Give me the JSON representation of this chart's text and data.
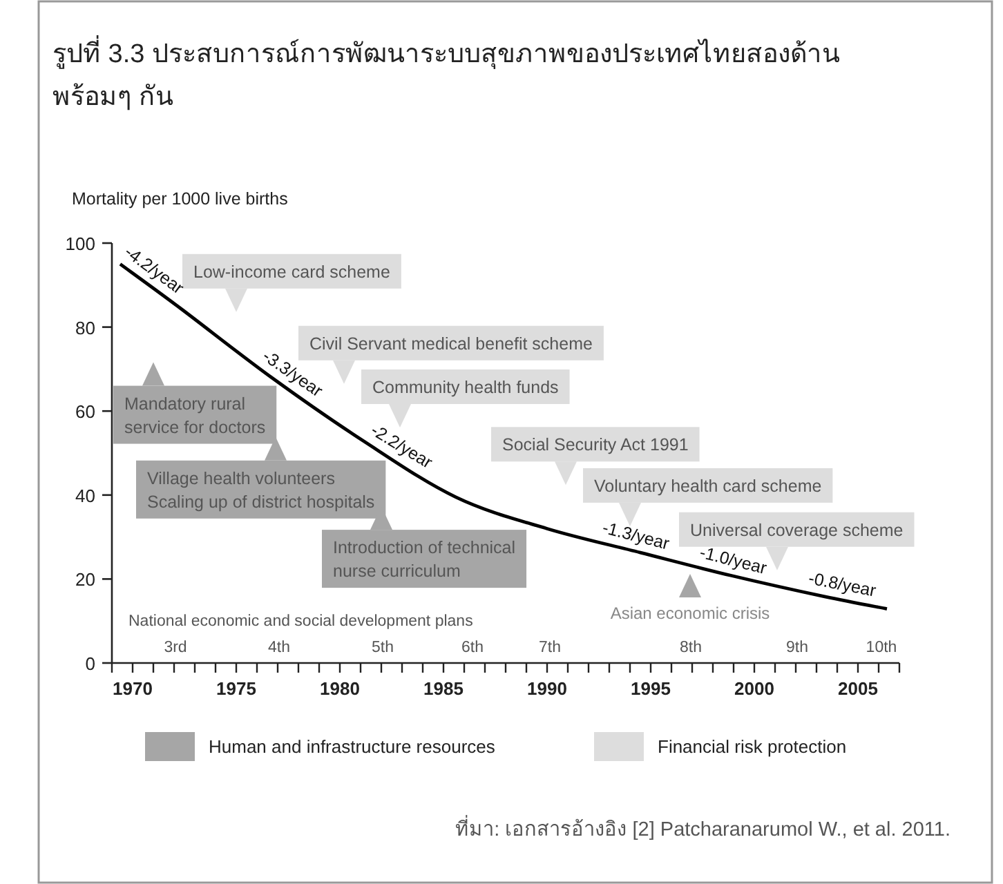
{
  "chart_data": {
    "type": "line",
    "title": "รูปที่ 3.3 ประสบการณ์การพัฒนาระบบสุขภาพของประเทศไทยสองด้าน\nพร้อมๆ กัน",
    "ylabel": "Mortality per 1000 live births",
    "xlim": [
      1969,
      2007
    ],
    "ylim": [
      0,
      100
    ],
    "xticks": [
      {
        "value": 1969,
        "label": null
      },
      1970,
      {
        "value": 1971,
        "label": null
      },
      {
        "value": 1972,
        "label": null
      },
      {
        "value": 1973,
        "label": null
      },
      {
        "value": 1974,
        "label": null
      },
      1975,
      {
        "value": 1976,
        "label": null
      },
      {
        "value": 1977,
        "label": null
      },
      {
        "value": 1978,
        "label": null
      },
      {
        "value": 1979,
        "label": null
      },
      1980,
      {
        "value": 1981,
        "label": null
      },
      {
        "value": 1982,
        "label": null
      },
      {
        "value": 1983,
        "label": null
      },
      {
        "value": 1984,
        "label": null
      },
      1985,
      {
        "value": 1986,
        "label": null
      },
      {
        "value": 1987,
        "label": null
      },
      {
        "value": 1988,
        "label": null
      },
      {
        "value": 1989,
        "label": null
      },
      1990,
      {
        "value": 1991,
        "label": null
      },
      {
        "value": 1992,
        "label": null
      },
      {
        "value": 1993,
        "label": null
      },
      {
        "value": 1994,
        "label": null
      },
      1995,
      {
        "value": 1996,
        "label": null
      },
      {
        "value": 1997,
        "label": null
      },
      {
        "value": 1998,
        "label": null
      },
      {
        "value": 1999,
        "label": null
      },
      2000,
      {
        "value": 2001,
        "label": null
      },
      {
        "value": 2002,
        "label": null
      },
      {
        "value": 2003,
        "label": null
      },
      {
        "value": 2004,
        "label": null
      },
      2005,
      {
        "value": 2006,
        "label": null
      },
      {
        "value": 2007,
        "label": null
      }
    ],
    "yticks": [
      0,
      20,
      40,
      60,
      80,
      100
    ],
    "series": [
      {
        "color": "#000000",
        "x": [
          1969.4,
          1972.3,
          1976.7,
          1981.1,
          1985.6,
          1990.0,
          1994.5,
          1998.9,
          2003.4,
          2006.4
        ],
        "values": [
          95,
          84.5,
          68,
          53,
          39.5,
          32,
          26.3,
          20.8,
          15.8,
          12.9
        ]
      },
      {
        "type": "scatter",
        "name": "Human and infrastructure resources",
        "color": "#a6a6a6",
        "marker": "triangle",
        "x": [
          1971.0,
          1976.9,
          1982.0,
          1996.9
        ],
        "values": [
          67.9,
          50.1,
          33.6,
          17.5
        ]
      },
      {
        "type": "scatter",
        "name": "Financial risk protection",
        "color": "#dddddd",
        "marker": "triangle",
        "x": [
          1975.0,
          1980.2,
          1982.9,
          1990.9,
          1994.0,
          2001.1
        ],
        "values": [
          87.3,
          70.2,
          59.8,
          46.1,
          36.3,
          25.8
        ]
      }
    ],
    "annotations": [
      {
        "text": "Low-income card scheme",
        "x": 1975.0,
        "y": 87.3
      },
      {
        "text": "Civil Servant medical benefit scheme",
        "x": 1980.2,
        "y": 70.2
      },
      {
        "text": "Community health funds",
        "x": 1982.9,
        "y": 59.8
      },
      {
        "text": "Social Security Act 1991",
        "x": 1990.9,
        "y": 46.1
      },
      {
        "text": "Voluntary health card scheme",
        "x": 1994.0,
        "y": 36.3
      },
      {
        "text": "Universal coverage scheme",
        "x": 2001.1,
        "y": 25.8
      },
      {
        "text": "Mandatory rural\nservice for doctors",
        "x": 1971.0,
        "y": 67.9
      },
      {
        "text": "Village health volunteers\nScaling up of district hospitals",
        "x": 1976.9,
        "y": 50.1
      },
      {
        "text": "Introduction of technical\nnurse curriculum",
        "x": 1982.0,
        "y": 33.6
      },
      {
        "text": "Asian economic crisis",
        "x": 1996.9,
        "y": 17.5
      },
      "-4.2/year",
      "-3.3/year",
      "-2.2/year",
      "-1.3/year",
      "-1.0/year",
      "-0.8/year",
      "National economic and social development plans",
      "3rd",
      "4th",
      "5th",
      "6th",
      "7th",
      "8th",
      "9th",
      "10th",
      "ที่มา: เอกสารอ้างอิง [2] Patcharanarumol W., et al. 2011."
    ],
    "legend": "bottom",
    "grid": false
  }
}
